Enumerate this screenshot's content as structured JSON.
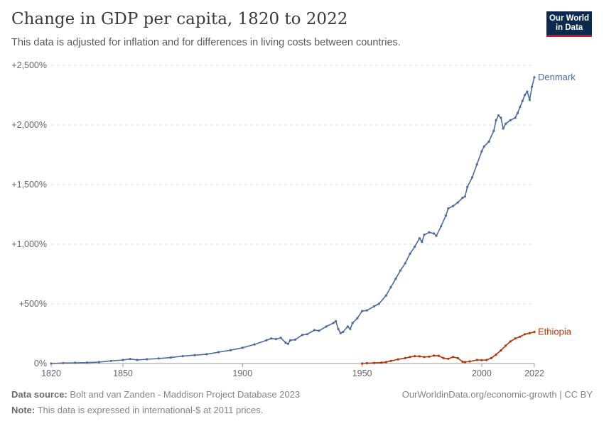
{
  "header": {
    "title": "Change in GDP per capita, 1820 to 2022",
    "subtitle": "This data is adjusted for inflation and for differences in living costs between countries.",
    "logo_line1": "Our World",
    "logo_line2": "in Data"
  },
  "footer": {
    "source_label": "Data source:",
    "source_text": "Bolt and van Zanden - Maddison Project Database 2023",
    "note_label": "Note:",
    "note_text": "This data is expressed in international-$ at 2011 prices.",
    "link_text": "OurWorldinData.org/economic-growth | CC BY"
  },
  "chart_data": {
    "type": "line",
    "title": "Change in GDP per capita, 1820 to 2022",
    "subtitle": "This data is adjusted for inflation and for differences in living costs between countries.",
    "xlim": [
      1820,
      2022
    ],
    "ylim": [
      0,
      2500
    ],
    "x_ticks": [
      1820,
      1850,
      1900,
      1950,
      2000,
      2022
    ],
    "y_ticks": [
      0,
      500,
      1000,
      1500,
      2000,
      2500
    ],
    "y_tick_labels": [
      "0%",
      "+500%",
      "+1,000%",
      "+1,500%",
      "+2,000%",
      "+2,500%"
    ],
    "grid": "horizontal-dashed",
    "series": [
      {
        "name": "Denmark",
        "color": "#4c6a9c",
        "points": [
          [
            1820,
            0
          ],
          [
            1825,
            4
          ],
          [
            1830,
            6
          ],
          [
            1835,
            8
          ],
          [
            1840,
            12
          ],
          [
            1845,
            22
          ],
          [
            1850,
            30
          ],
          [
            1853,
            38
          ],
          [
            1856,
            30
          ],
          [
            1860,
            36
          ],
          [
            1865,
            42
          ],
          [
            1870,
            50
          ],
          [
            1875,
            62
          ],
          [
            1880,
            70
          ],
          [
            1885,
            78
          ],
          [
            1890,
            95
          ],
          [
            1895,
            112
          ],
          [
            1900,
            132
          ],
          [
            1905,
            160
          ],
          [
            1910,
            195
          ],
          [
            1912,
            210
          ],
          [
            1914,
            205
          ],
          [
            1916,
            215
          ],
          [
            1918,
            175
          ],
          [
            1919,
            165
          ],
          [
            1920,
            195
          ],
          [
            1922,
            200
          ],
          [
            1925,
            240
          ],
          [
            1927,
            245
          ],
          [
            1930,
            280
          ],
          [
            1932,
            275
          ],
          [
            1935,
            310
          ],
          [
            1938,
            340
          ],
          [
            1939,
            355
          ],
          [
            1940,
            290
          ],
          [
            1941,
            255
          ],
          [
            1942,
            265
          ],
          [
            1944,
            310
          ],
          [
            1945,
            290
          ],
          [
            1946,
            340
          ],
          [
            1948,
            380
          ],
          [
            1950,
            440
          ],
          [
            1952,
            445
          ],
          [
            1955,
            480
          ],
          [
            1957,
            500
          ],
          [
            1960,
            570
          ],
          [
            1962,
            640
          ],
          [
            1964,
            710
          ],
          [
            1966,
            780
          ],
          [
            1968,
            840
          ],
          [
            1970,
            920
          ],
          [
            1972,
            980
          ],
          [
            1974,
            1050
          ],
          [
            1975,
            1020
          ],
          [
            1976,
            1080
          ],
          [
            1978,
            1100
          ],
          [
            1980,
            1090
          ],
          [
            1981,
            1070
          ],
          [
            1983,
            1150
          ],
          [
            1985,
            1240
          ],
          [
            1986,
            1300
          ],
          [
            1988,
            1320
          ],
          [
            1990,
            1350
          ],
          [
            1992,
            1390
          ],
          [
            1993,
            1400
          ],
          [
            1994,
            1480
          ],
          [
            1996,
            1560
          ],
          [
            1998,
            1670
          ],
          [
            2000,
            1780
          ],
          [
            2001,
            1820
          ],
          [
            2003,
            1860
          ],
          [
            2005,
            1950
          ],
          [
            2006,
            2040
          ],
          [
            2007,
            2080
          ],
          [
            2008,
            2060
          ],
          [
            2009,
            1970
          ],
          [
            2010,
            2010
          ],
          [
            2012,
            2040
          ],
          [
            2014,
            2060
          ],
          [
            2015,
            2100
          ],
          [
            2016,
            2150
          ],
          [
            2017,
            2200
          ],
          [
            2018,
            2250
          ],
          [
            2019,
            2280
          ],
          [
            2020,
            2210
          ],
          [
            2021,
            2320
          ],
          [
            2022,
            2400
          ]
        ]
      },
      {
        "name": "Ethiopia",
        "color": "#b13507",
        "points": [
          [
            1950,
            0
          ],
          [
            1952,
            3
          ],
          [
            1955,
            5
          ],
          [
            1958,
            8
          ],
          [
            1960,
            12
          ],
          [
            1962,
            22
          ],
          [
            1965,
            35
          ],
          [
            1968,
            45
          ],
          [
            1970,
            55
          ],
          [
            1972,
            62
          ],
          [
            1974,
            60
          ],
          [
            1976,
            55
          ],
          [
            1978,
            58
          ],
          [
            1980,
            66
          ],
          [
            1982,
            65
          ],
          [
            1984,
            45
          ],
          [
            1986,
            40
          ],
          [
            1988,
            55
          ],
          [
            1990,
            45
          ],
          [
            1992,
            15
          ],
          [
            1993,
            12
          ],
          [
            1995,
            18
          ],
          [
            1998,
            30
          ],
          [
            2000,
            28
          ],
          [
            2002,
            30
          ],
          [
            2004,
            45
          ],
          [
            2006,
            75
          ],
          [
            2008,
            110
          ],
          [
            2010,
            150
          ],
          [
            2012,
            185
          ],
          [
            2014,
            210
          ],
          [
            2016,
            225
          ],
          [
            2018,
            245
          ],
          [
            2020,
            255
          ],
          [
            2022,
            265
          ]
        ]
      }
    ]
  }
}
